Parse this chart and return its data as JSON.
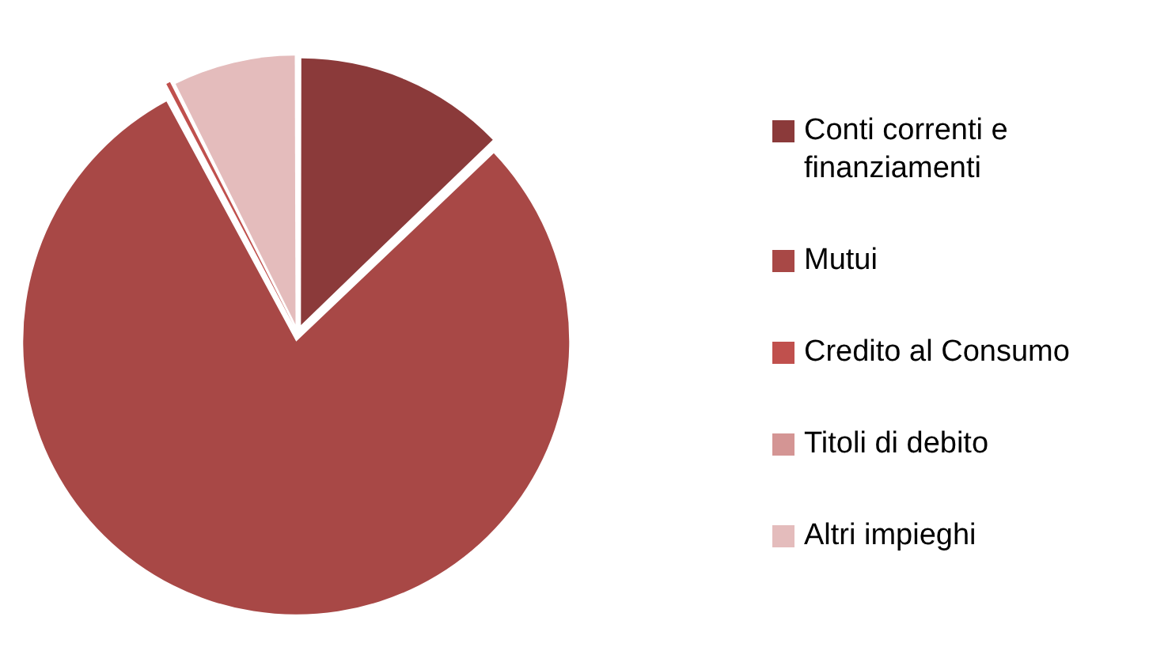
{
  "chart_data": {
    "type": "pie",
    "categories": [
      "Conti correnti e finanziamenti",
      "Mutui",
      "Credito al Consumo",
      "Titoli di debito",
      "Altri impieghi"
    ],
    "values": [
      12.8,
      79.4,
      0.4,
      0,
      7.4
    ],
    "colors": [
      "#8b3a3a",
      "#a84846",
      "#c0504d",
      "#d49594",
      "#e4bcbc"
    ],
    "legend": "right"
  }
}
